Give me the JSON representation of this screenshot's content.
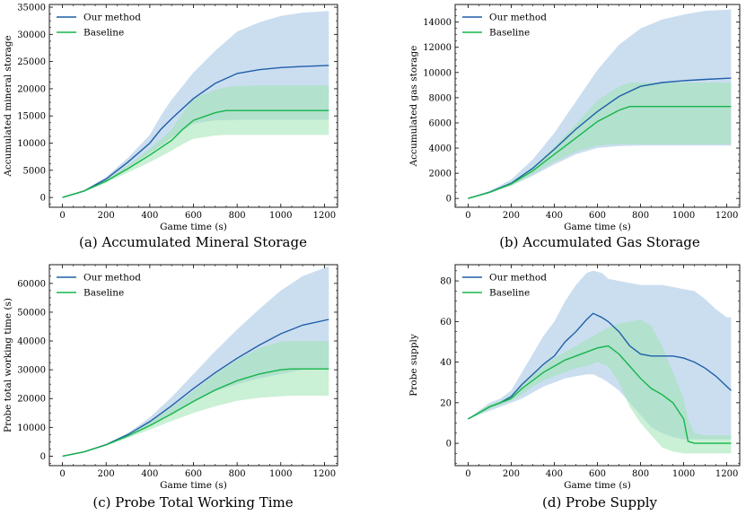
{
  "colors": {
    "ours": "#1f5fa8",
    "ours_band": "#a9c8e6",
    "baseline": "#15b54a",
    "baseline_band": "#9fe3b3"
  },
  "chart_data": [
    {
      "type": "line",
      "caption": "(a) Accumulated Mineral Storage",
      "xlabel": "Game time (s)",
      "ylabel": "Accumulated mineral storage",
      "xlim": [
        -60,
        1260
      ],
      "ylim": [
        -1800,
        35500
      ],
      "xticks": [
        0,
        200,
        400,
        600,
        800,
        1000,
        1200
      ],
      "yticks": [
        0,
        5000,
        10000,
        15000,
        20000,
        25000,
        30000,
        35000
      ],
      "legend": [
        "Our method",
        "Baseline"
      ],
      "series": [
        {
          "name": "Our method",
          "x": [
            0,
            100,
            200,
            300,
            400,
            450,
            500,
            600,
            700,
            800,
            900,
            1000,
            1100,
            1220
          ],
          "y": [
            0,
            1200,
            3400,
            6500,
            10000,
            12500,
            14500,
            18200,
            21000,
            22800,
            23500,
            23900,
            24100,
            24300
          ],
          "low": [
            0,
            1100,
            3000,
            5500,
            8200,
            9500,
            11000,
            13600,
            14200,
            14300,
            14300,
            14300,
            14300,
            14300
          ],
          "high": [
            0,
            1300,
            3800,
            7300,
            11500,
            15000,
            18000,
            23000,
            27000,
            30500,
            32200,
            33400,
            34000,
            34300
          ]
        },
        {
          "name": "Baseline",
          "x": [
            0,
            100,
            200,
            300,
            400,
            500,
            550,
            600,
            700,
            750,
            800,
            900,
            1000,
            1100,
            1220
          ],
          "y": [
            0,
            1200,
            3000,
            5300,
            7800,
            10500,
            12500,
            14200,
            15600,
            16000,
            16000,
            16000,
            16000,
            16000,
            16000
          ],
          "low": [
            0,
            1100,
            2700,
            4600,
            6500,
            8600,
            9800,
            10800,
            11400,
            11500,
            11500,
            11500,
            11500,
            11500,
            11500
          ],
          "high": [
            0,
            1300,
            3300,
            5900,
            9000,
            12500,
            15500,
            18200,
            19800,
            20300,
            20500,
            20600,
            20600,
            20600,
            20600
          ]
        }
      ]
    },
    {
      "type": "line",
      "caption": "(b) Accumulated Gas Storage",
      "xlabel": "Game time (s)",
      "ylabel": "Accumulated gas storage",
      "xlim": [
        -60,
        1260
      ],
      "ylim": [
        -700,
        15400
      ],
      "xticks": [
        0,
        200,
        400,
        600,
        800,
        1000,
        1200
      ],
      "yticks": [
        0,
        2000,
        4000,
        6000,
        8000,
        10000,
        12000,
        14000
      ],
      "legend": [
        "Our method",
        "Baseline"
      ],
      "series": [
        {
          "name": "Our method",
          "x": [
            0,
            100,
            200,
            300,
            400,
            500,
            600,
            700,
            800,
            900,
            1000,
            1100,
            1220
          ],
          "y": [
            0,
            500,
            1200,
            2400,
            3900,
            5500,
            6900,
            8100,
            8900,
            9200,
            9350,
            9450,
            9550
          ],
          "low": [
            0,
            450,
            1000,
            1800,
            2700,
            3500,
            4000,
            4150,
            4200,
            4200,
            4200,
            4200,
            4200
          ],
          "high": [
            0,
            600,
            1500,
            3100,
            5200,
            7700,
            10200,
            12200,
            13500,
            14200,
            14600,
            14900,
            15000
          ]
        },
        {
          "name": "Baseline",
          "x": [
            0,
            100,
            200,
            300,
            400,
            500,
            600,
            700,
            750,
            800,
            900,
            1000,
            1100,
            1220
          ],
          "y": [
            0,
            480,
            1150,
            2200,
            3500,
            4800,
            6100,
            7000,
            7300,
            7300,
            7300,
            7300,
            7300,
            7300
          ],
          "low": [
            0,
            450,
            1000,
            1900,
            2900,
            3700,
            4200,
            4300,
            4300,
            4300,
            4300,
            4300,
            4300,
            4300
          ],
          "high": [
            0,
            520,
            1300,
            2500,
            4100,
            5900,
            7800,
            8900,
            9200,
            9200,
            9200,
            9200,
            9200,
            9200
          ]
        }
      ]
    },
    {
      "type": "line",
      "caption": "(c) Probe Total Working Time",
      "xlabel": "Game time (s)",
      "ylabel": "Probe total working time (s)",
      "xlim": [
        -60,
        1260
      ],
      "ylim": [
        -3300,
        66500
      ],
      "xticks": [
        0,
        200,
        400,
        600,
        800,
        1000,
        1200
      ],
      "yticks": [
        0,
        10000,
        20000,
        30000,
        40000,
        50000,
        60000
      ],
      "legend": [
        "Our method",
        "Baseline"
      ],
      "series": [
        {
          "name": "Our method",
          "x": [
            0,
            100,
            200,
            300,
            400,
            500,
            600,
            700,
            800,
            900,
            1000,
            1100,
            1220
          ],
          "y": [
            0,
            1500,
            4000,
            7500,
            12000,
            17500,
            23500,
            29000,
            34000,
            38500,
            42500,
            45500,
            47500
          ],
          "low": [
            0,
            1500,
            3900,
            7000,
            10800,
            15000,
            19000,
            22500,
            25000,
            27000,
            28500,
            30000,
            30500
          ],
          "high": [
            0,
            1600,
            4200,
            8000,
            13500,
            20500,
            28500,
            36500,
            44000,
            51000,
            57500,
            62500,
            66000
          ]
        },
        {
          "name": "Baseline",
          "x": [
            0,
            100,
            200,
            300,
            400,
            500,
            600,
            700,
            800,
            900,
            1000,
            1050,
            1100,
            1220
          ],
          "y": [
            0,
            1500,
            3900,
            7000,
            10600,
            14700,
            19000,
            23000,
            26200,
            28500,
            30000,
            30300,
            30300,
            30300
          ],
          "low": [
            0,
            1400,
            3700,
            6300,
            9200,
            12200,
            15000,
            17300,
            19200,
            20300,
            20800,
            21000,
            21000,
            21000
          ],
          "high": [
            0,
            1600,
            4100,
            7500,
            11800,
            17000,
            22700,
            28500,
            33500,
            37500,
            39800,
            40000,
            40000,
            40000
          ]
        }
      ]
    },
    {
      "type": "line",
      "caption": "(d) Probe Supply",
      "xlabel": "Game time (s)",
      "ylabel": "Probe supply",
      "xlim": [
        -60,
        1260
      ],
      "ylim": [
        -11,
        88
      ],
      "xticks": [
        0,
        200,
        400,
        600,
        800,
        1000,
        1200
      ],
      "yticks": [
        0,
        20,
        40,
        60,
        80
      ],
      "legend": [
        "Our method",
        "Baseline"
      ],
      "series": [
        {
          "name": "Our method",
          "x": [
            0,
            50,
            100,
            150,
            200,
            250,
            300,
            350,
            400,
            450,
            500,
            550,
            580,
            620,
            650,
            700,
            750,
            800,
            850,
            900,
            950,
            1000,
            1050,
            1100,
            1150,
            1200,
            1220
          ],
          "y": [
            12,
            15,
            18,
            20,
            23,
            29,
            34,
            39,
            43,
            50,
            55,
            61,
            64,
            62,
            60,
            55,
            48,
            44,
            43,
            43,
            43,
            42,
            40,
            37,
            33,
            28,
            26
          ],
          "low": [
            12,
            14,
            16,
            18,
            20,
            22,
            25,
            28,
            30,
            32,
            33,
            34,
            34,
            32,
            30,
            26,
            20,
            14,
            8,
            5,
            3,
            2,
            2,
            2,
            2,
            2,
            2
          ],
          "high": [
            12,
            16,
            20,
            22,
            26,
            35,
            44,
            53,
            60,
            70,
            78,
            84,
            85,
            84,
            81,
            80,
            79,
            78,
            78,
            78,
            77,
            76,
            75,
            71,
            66,
            62,
            62
          ]
        },
        {
          "name": "Baseline",
          "x": [
            0,
            50,
            100,
            150,
            200,
            250,
            300,
            350,
            400,
            450,
            500,
            550,
            600,
            650,
            700,
            750,
            800,
            850,
            900,
            950,
            1000,
            1020,
            1050,
            1100,
            1150,
            1200,
            1220
          ],
          "y": [
            12,
            15,
            18,
            20,
            22,
            27,
            31,
            35,
            38,
            41,
            43,
            45,
            47,
            48,
            44,
            38,
            32,
            27,
            24,
            20,
            12,
            1,
            0,
            0,
            0,
            0,
            0
          ],
          "low": [
            12,
            14,
            17,
            19,
            21,
            24,
            28,
            31,
            33,
            35,
            37,
            38,
            40,
            38,
            30,
            18,
            10,
            4,
            -2,
            -4,
            -5,
            -5,
            -5,
            -5,
            -5,
            -5,
            -5
          ],
          "high": [
            12,
            16,
            19,
            21,
            24,
            29,
            34,
            38,
            42,
            45,
            48,
            51,
            54,
            57,
            59,
            60,
            61,
            58,
            48,
            35,
            22,
            12,
            5,
            4,
            4,
            4,
            4
          ]
        }
      ]
    }
  ]
}
